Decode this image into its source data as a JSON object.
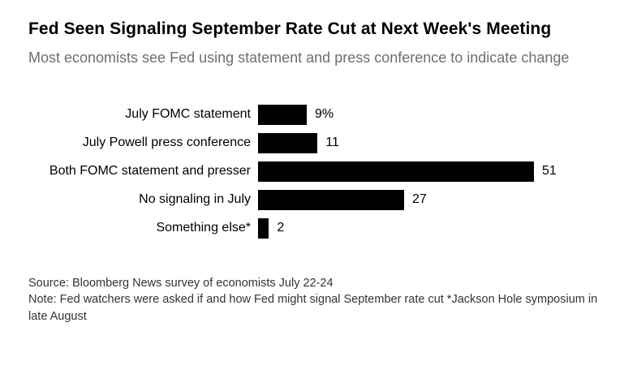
{
  "chart_data": {
    "type": "bar",
    "orientation": "horizontal",
    "title": "Fed Seen Signaling September Rate Cut at Next Week's Meeting",
    "subtitle": "Most economists see Fed using statement and press conference to indicate change",
    "categories": [
      "July FOMC statement",
      "July Powell press conference",
      "Both FOMC statement and presser",
      "No signaling in July",
      "Something else*"
    ],
    "values": [
      9,
      11,
      51,
      27,
      2
    ],
    "value_labels": [
      "9%",
      "11",
      "51",
      "27",
      "2"
    ],
    "xlabel": "",
    "ylabel": "",
    "xlim": [
      0,
      60
    ],
    "grid": false,
    "legend": false,
    "bar_color": "#000000",
    "title_color": "#000000",
    "subtitle_color": "#6e6e6e"
  },
  "footer": {
    "source": "Source: Bloomberg News survey of economists July 22-24",
    "note": "Note: Fed watchers were asked if and how Fed might signal September rate cut *Jackson Hole symposium in late August"
  }
}
